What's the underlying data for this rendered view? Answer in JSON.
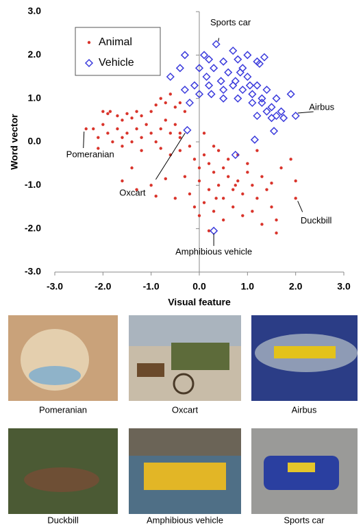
{
  "chart_data": {
    "type": "scatter",
    "xlabel": "Visual feature",
    "ylabel": "Word vector",
    "xlim": [
      -3,
      3
    ],
    "ylim": [
      -3,
      3
    ],
    "xticks": [
      {
        "value": -3,
        "label": "-3.0"
      },
      {
        "value": -2,
        "label": "-2.0"
      },
      {
        "value": -1,
        "label": "-1.0"
      },
      {
        "value": 0,
        "label": "0.0"
      },
      {
        "value": 1,
        "label": "1.0"
      },
      {
        "value": 2,
        "label": "2.0"
      },
      {
        "value": 3,
        "label": "3.0"
      }
    ],
    "yticks": [
      {
        "value": -3,
        "label": "-3.0"
      },
      {
        "value": -2,
        "label": "-2.0"
      },
      {
        "value": -1,
        "label": "-1.0"
      },
      {
        "value": 0,
        "label": "0.0"
      },
      {
        "value": 1,
        "label": "1.0"
      },
      {
        "value": 2,
        "label": "2.0"
      },
      {
        "value": 3,
        "label": "3.0"
      }
    ],
    "legend": "upper-left",
    "series": [
      {
        "name": "Animal",
        "color": "#d9342b",
        "marker": "circle",
        "x": [
          -2.0,
          -1.9,
          -1.85,
          -1.7,
          -1.6,
          -1.5,
          -1.4,
          -1.3,
          -1.2,
          -1.0,
          -0.9,
          -0.8,
          -0.7,
          -0.6,
          -0.5,
          -0.4,
          -0.3,
          -2.2,
          -2.1,
          -2.0,
          -1.9,
          -1.8,
          -1.7,
          -1.6,
          -1.5,
          -1.4,
          -1.3,
          -1.2,
          -1.1,
          -1.0,
          -0.9,
          -0.8,
          -0.7,
          -0.6,
          -0.5,
          -0.4,
          -2.35,
          -2.1,
          -1.6,
          -1.2,
          -0.8,
          -0.6,
          -0.4,
          -0.2,
          -0.1,
          0.0,
          0.1,
          0.2,
          -1.6,
          -1.3,
          -1.0,
          -0.7,
          -0.5,
          -0.3,
          -0.2,
          0.0,
          0.1,
          0.2,
          0.3,
          0.4,
          0.5,
          0.6,
          0.7,
          0.8,
          0.9,
          1.0,
          1.1,
          1.2,
          1.3,
          1.4,
          1.5,
          1.6,
          1.7,
          1.9,
          0.3,
          0.5,
          0.7,
          0.9,
          1.1,
          1.3,
          1.6,
          0.4,
          0.6,
          0.8,
          1.0,
          0.0,
          -0.1,
          0.2,
          2.0,
          2.0,
          0.1,
          0.3,
          -1.4,
          -0.9,
          1.2,
          0.5,
          0.75,
          0.35,
          1.5,
          -0.4
        ],
        "y": [
          0.7,
          0.65,
          0.7,
          0.6,
          0.5,
          0.65,
          0.55,
          0.7,
          0.6,
          0.7,
          0.85,
          1.0,
          0.9,
          1.1,
          0.8,
          0.9,
          0.7,
          0.3,
          0.1,
          0.4,
          0.2,
          0.0,
          0.3,
          0.1,
          0.2,
          0.0,
          0.3,
          0.1,
          0.4,
          0.2,
          0.0,
          0.3,
          0.5,
          0.2,
          0.4,
          0.1,
          0.3,
          -0.15,
          -0.1,
          -0.2,
          -0.15,
          -0.3,
          -0.2,
          -0.1,
          -0.4,
          -0.6,
          -0.3,
          -0.5,
          -0.9,
          -1.1,
          -1.0,
          -0.85,
          -1.3,
          -0.8,
          -1.2,
          -0.9,
          -1.4,
          -1.1,
          -0.7,
          -1.0,
          -1.3,
          -0.8,
          -1.1,
          -0.9,
          -1.2,
          -0.7,
          -1.0,
          -1.3,
          -0.8,
          -1.1,
          -1.5,
          -1.8,
          -0.6,
          -0.4,
          -1.6,
          -1.8,
          -1.5,
          -1.7,
          -1.6,
          -1.9,
          -2.1,
          -0.2,
          -0.4,
          -0.3,
          -0.5,
          -1.7,
          -1.5,
          -2.05,
          -1.3,
          -0.9,
          0.2,
          -0.1,
          -0.6,
          -1.25,
          -0.2,
          -0.6,
          -1.0,
          -1.3,
          -0.95,
          0.2
        ]
      },
      {
        "name": "Vehicle",
        "color": "#3b3bdc",
        "marker": "diamond",
        "x": [
          0.35,
          0.7,
          1.0,
          1.35,
          0.1,
          -0.3,
          0.2,
          0.5,
          0.8,
          1.2,
          0.0,
          0.3,
          0.6,
          0.9,
          1.25,
          -0.4,
          -0.6,
          0.15,
          0.45,
          0.75,
          1.0,
          1.2,
          1.4,
          1.6,
          -0.3,
          -0.1,
          0.2,
          0.5,
          0.7,
          0.9,
          1.1,
          1.3,
          1.5,
          1.7,
          1.9,
          0.0,
          0.25,
          0.5,
          0.8,
          1.3,
          1.6,
          1.75,
          1.5,
          -0.2,
          1.1,
          1.2,
          1.4,
          1.55,
          1.15,
          2.0,
          -0.25,
          0.3,
          0.75,
          0.85,
          1.05
        ],
        "y": [
          2.25,
          2.1,
          2.0,
          1.95,
          2.0,
          2.0,
          1.9,
          1.85,
          1.9,
          1.85,
          1.7,
          1.7,
          1.6,
          1.7,
          1.8,
          1.7,
          1.5,
          1.5,
          1.4,
          1.4,
          1.5,
          1.3,
          1.2,
          1.0,
          1.2,
          1.3,
          1.3,
          1.2,
          1.3,
          1.2,
          1.1,
          0.9,
          0.8,
          0.7,
          1.1,
          1.1,
          1.1,
          1.0,
          1.0,
          1.0,
          0.6,
          0.55,
          0.55,
          0.9,
          0.9,
          0.6,
          0.7,
          0.25,
          0.05,
          0.6,
          0.27,
          -2.05,
          -0.3,
          1.6,
          1.3
        ]
      }
    ],
    "annotations": [
      {
        "text": "Sports car",
        "series": 1,
        "point": 0
      },
      {
        "text": "Airbus",
        "series": 1,
        "point": 49
      },
      {
        "text": "Pomeranian",
        "series": 0,
        "point": 36
      },
      {
        "text": "Oxcart",
        "series": 1,
        "point": 50
      },
      {
        "text": "Duckbill",
        "series": 0,
        "point": 88
      },
      {
        "text": "Amphibious vehicle",
        "series": 1,
        "point": 51
      }
    ]
  },
  "images": [
    {
      "caption": "Pomeranian"
    },
    {
      "caption": "Oxcart"
    },
    {
      "caption": "Airbus"
    },
    {
      "caption": "Duckbill"
    },
    {
      "caption": "Amphibious vehicle"
    },
    {
      "caption": "Sports car"
    }
  ]
}
